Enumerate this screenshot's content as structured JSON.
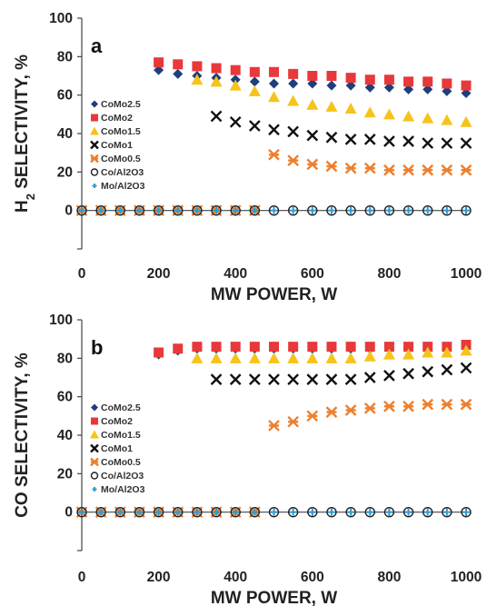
{
  "chart_data": [
    {
      "type": "scatter",
      "panel_label": "a",
      "ylabel_main": "H",
      "ylabel_sub": "2",
      "ylabel_rest": " SELECTIVITY, %",
      "xlabel": "MW POWER, W",
      "xlim": [
        0,
        1000
      ],
      "ylim": [
        -20,
        100
      ],
      "xticks": [
        0,
        200,
        400,
        600,
        800,
        1000
      ],
      "yticks": [
        0,
        20,
        40,
        60,
        80,
        100
      ],
      "legend_position": "left-middle",
      "series": [
        {
          "name": "CoMo2.5",
          "marker": "diamond",
          "color": "#1f3f7a",
          "x": [
            200,
            250,
            300,
            350,
            400,
            450,
            500,
            550,
            600,
            650,
            700,
            750,
            800,
            850,
            900,
            950,
            1000
          ],
          "y": [
            73,
            71,
            70,
            69,
            68,
            67,
            66,
            66,
            66,
            65,
            65,
            64,
            64,
            63,
            63,
            62,
            61
          ]
        },
        {
          "name": "CoMo2",
          "marker": "square",
          "color": "#e8383a",
          "x": [
            200,
            250,
            300,
            350,
            400,
            450,
            500,
            550,
            600,
            650,
            700,
            750,
            800,
            850,
            900,
            950,
            1000
          ],
          "y": [
            77,
            76,
            75,
            74,
            73,
            72,
            72,
            71,
            70,
            70,
            69,
            68,
            68,
            67,
            67,
            66,
            65
          ]
        },
        {
          "name": "CoMo1.5",
          "marker": "triangle",
          "color": "#f7c31a",
          "x": [
            300,
            350,
            400,
            450,
            500,
            550,
            600,
            650,
            700,
            750,
            800,
            850,
            900,
            950,
            1000
          ],
          "y": [
            68,
            67,
            65,
            62,
            59,
            57,
            55,
            54,
            53,
            51,
            50,
            49,
            48,
            47,
            46
          ]
        },
        {
          "name": "CoMo1",
          "marker": "x",
          "color": "#111111",
          "x": [
            350,
            400,
            450,
            500,
            550,
            600,
            650,
            700,
            750,
            800,
            850,
            900,
            950,
            1000
          ],
          "y": [
            49,
            46,
            44,
            42,
            41,
            39,
            38,
            37,
            37,
            36,
            36,
            35,
            35,
            35
          ]
        },
        {
          "name": "CoMo0.5",
          "marker": "asterisk",
          "color": "#ee7f2d",
          "x": [
            0,
            50,
            100,
            150,
            200,
            250,
            300,
            350,
            400,
            450,
            500,
            550,
            600,
            650,
            700,
            750,
            800,
            850,
            900,
            950,
            1000
          ],
          "y": [
            0,
            0,
            0,
            0,
            0,
            0,
            0,
            0,
            0,
            0,
            29,
            26,
            24,
            23,
            22,
            22,
            21,
            21,
            21,
            21,
            21
          ]
        },
        {
          "name": "Co/Al2O3",
          "marker": "circle",
          "color": "#222222",
          "x": [
            0,
            50,
            100,
            150,
            200,
            250,
            300,
            350,
            400,
            450,
            500,
            550,
            600,
            650,
            700,
            750,
            800,
            850,
            900,
            950,
            1000
          ],
          "y": [
            0,
            0,
            0,
            0,
            0,
            0,
            0,
            0,
            0,
            0,
            0,
            0,
            0,
            0,
            0,
            0,
            0,
            0,
            0,
            0,
            0
          ]
        },
        {
          "name": "Mo/Al2O3",
          "marker": "plus",
          "color": "#2e9bd0",
          "x": [
            0,
            50,
            100,
            150,
            200,
            250,
            300,
            350,
            400,
            450,
            500,
            550,
            600,
            650,
            700,
            750,
            800,
            850,
            900,
            950,
            1000
          ],
          "y": [
            0,
            0,
            0,
            0,
            0,
            0,
            0,
            0,
            0,
            0,
            0,
            0,
            0,
            0,
            0,
            0,
            0,
            0,
            0,
            0,
            0
          ]
        }
      ]
    },
    {
      "type": "scatter",
      "panel_label": "b",
      "ylabel_main": "CO SELECTIVITY, %",
      "ylabel_sub": "",
      "ylabel_rest": "",
      "xlabel": "MW POWER, W",
      "xlim": [
        0,
        1000
      ],
      "ylim": [
        -20,
        100
      ],
      "xticks": [
        0,
        200,
        400,
        600,
        800,
        1000
      ],
      "yticks": [
        0,
        20,
        40,
        60,
        80,
        100
      ],
      "legend_position": "left-middle",
      "series": [
        {
          "name": "CoMo2.5",
          "marker": "diamond",
          "color": "#1f3f7a",
          "x": [
            200,
            250,
            300,
            350,
            400,
            450,
            500,
            550,
            600,
            650,
            700,
            750,
            800,
            850,
            900,
            950,
            1000
          ],
          "y": [
            82,
            84,
            85,
            85,
            85,
            85,
            85,
            85,
            85,
            85,
            85,
            85,
            85,
            85,
            85,
            85,
            86
          ]
        },
        {
          "name": "CoMo2",
          "marker": "square",
          "color": "#e8383a",
          "x": [
            200,
            250,
            300,
            350,
            400,
            450,
            500,
            550,
            600,
            650,
            700,
            750,
            800,
            850,
            900,
            950,
            1000
          ],
          "y": [
            83,
            85,
            86,
            86,
            86,
            86,
            86,
            86,
            86,
            86,
            86,
            86,
            86,
            86,
            86,
            86,
            87
          ]
        },
        {
          "name": "CoMo1.5",
          "marker": "triangle",
          "color": "#f7c31a",
          "x": [
            300,
            350,
            400,
            450,
            500,
            550,
            600,
            650,
            700,
            750,
            800,
            850,
            900,
            950,
            1000
          ],
          "y": [
            80,
            80,
            80,
            80,
            80,
            80,
            80,
            80,
            80,
            81,
            82,
            82,
            83,
            83,
            84
          ]
        },
        {
          "name": "CoMo1",
          "marker": "x",
          "color": "#111111",
          "x": [
            350,
            400,
            450,
            500,
            550,
            600,
            650,
            700,
            750,
            800,
            850,
            900,
            950,
            1000
          ],
          "y": [
            69,
            69,
            69,
            69,
            69,
            69,
            69,
            69,
            70,
            71,
            72,
            73,
            74,
            75
          ]
        },
        {
          "name": "CoMo0.5",
          "marker": "asterisk",
          "color": "#ee7f2d",
          "x": [
            0,
            50,
            100,
            150,
            200,
            250,
            300,
            350,
            400,
            450,
            500,
            550,
            600,
            650,
            700,
            750,
            800,
            850,
            900,
            950,
            1000
          ],
          "y": [
            0,
            0,
            0,
            0,
            0,
            0,
            0,
            0,
            0,
            0,
            45,
            47,
            50,
            52,
            53,
            54,
            55,
            55,
            56,
            56,
            56
          ]
        },
        {
          "name": "Co/Al2O3",
          "marker": "circle",
          "color": "#222222",
          "x": [
            0,
            50,
            100,
            150,
            200,
            250,
            300,
            350,
            400,
            450,
            500,
            550,
            600,
            650,
            700,
            750,
            800,
            850,
            900,
            950,
            1000
          ],
          "y": [
            0,
            0,
            0,
            0,
            0,
            0,
            0,
            0,
            0,
            0,
            0,
            0,
            0,
            0,
            0,
            0,
            0,
            0,
            0,
            0,
            0
          ]
        },
        {
          "name": "Mo/Al2O3",
          "marker": "plus",
          "color": "#2e9bd0",
          "x": [
            0,
            50,
            100,
            150,
            200,
            250,
            300,
            350,
            400,
            450,
            500,
            550,
            600,
            650,
            700,
            750,
            800,
            850,
            900,
            950,
            1000
          ],
          "y": [
            0,
            0,
            0,
            0,
            0,
            0,
            0,
            0,
            0,
            0,
            0,
            0,
            0,
            0,
            0,
            0,
            0,
            0,
            0,
            0,
            0
          ]
        }
      ]
    }
  ]
}
